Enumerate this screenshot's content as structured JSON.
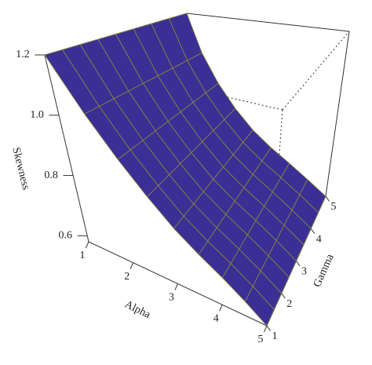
{
  "chart_data": {
    "type": "surface",
    "xlabel": "Alpha",
    "ylabel": "Gamma",
    "zlabel": "Skewness",
    "x": [
      1,
      1.5,
      2,
      2.5,
      3,
      3.5,
      4,
      4.5,
      5
    ],
    "y": [
      1,
      1.5,
      2,
      2.5,
      3,
      3.5,
      4,
      4.5,
      5
    ],
    "z": [
      [
        1.2,
        1.03,
        0.91,
        0.82,
        0.75,
        0.7,
        0.66,
        0.62,
        0.58
      ],
      [
        1.2,
        1.03,
        0.91,
        0.82,
        0.75,
        0.7,
        0.66,
        0.62,
        0.58
      ],
      [
        1.2,
        1.03,
        0.91,
        0.82,
        0.75,
        0.7,
        0.66,
        0.62,
        0.58
      ],
      [
        1.2,
        1.03,
        0.91,
        0.82,
        0.75,
        0.7,
        0.66,
        0.62,
        0.58
      ],
      [
        1.2,
        1.03,
        0.91,
        0.82,
        0.75,
        0.7,
        0.66,
        0.62,
        0.58
      ],
      [
        1.2,
        1.03,
        0.91,
        0.82,
        0.75,
        0.7,
        0.66,
        0.62,
        0.58
      ],
      [
        1.2,
        1.03,
        0.91,
        0.82,
        0.75,
        0.7,
        0.66,
        0.62,
        0.58
      ],
      [
        1.2,
        1.03,
        0.91,
        0.82,
        0.75,
        0.7,
        0.66,
        0.62,
        0.58
      ],
      [
        1.2,
        1.03,
        0.91,
        0.82,
        0.75,
        0.7,
        0.66,
        0.62,
        0.58
      ]
    ],
    "xlim": [
      1,
      5
    ],
    "ylim": [
      1,
      5
    ],
    "zlim": [
      0.58,
      1.2
    ],
    "xticks": [
      1,
      2,
      3,
      4,
      5
    ],
    "yticks": [
      1,
      2,
      3,
      4,
      5
    ],
    "zticks": [
      0.6,
      0.8,
      {
        "value": 1,
        "label": "1.0"
      },
      1.2
    ],
    "color": "#3b2f96",
    "edge_color": "#8c8a3a"
  }
}
